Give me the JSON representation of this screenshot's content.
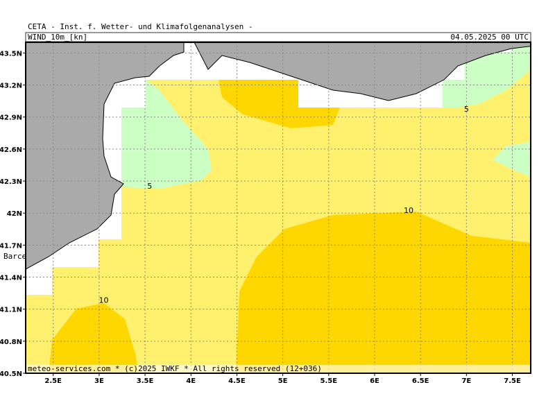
{
  "header": {
    "title": "CETA - Inst. f. Wetter- und Klimafolgenanalysen -",
    "field": "WIND_10m_[kn]",
    "valid_time": "04.05.2025 00 UTC"
  },
  "map": {
    "lon_range": [
      2.2,
      7.7
    ],
    "lat_range": [
      40.5,
      43.6
    ],
    "lon_ticks": [
      {
        "value": 2.5,
        "label": "2.5E"
      },
      {
        "value": 3,
        "label": "3E"
      },
      {
        "value": 3.5,
        "label": "3.5E"
      },
      {
        "value": 4,
        "label": "4E"
      },
      {
        "value": 4.5,
        "label": "4.5E"
      },
      {
        "value": 5,
        "label": "5E"
      },
      {
        "value": 5.5,
        "label": "5.5E"
      },
      {
        "value": 6,
        "label": "6E"
      },
      {
        "value": 6.5,
        "label": "6.5E"
      },
      {
        "value": 7,
        "label": "7E"
      },
      {
        "value": 7.5,
        "label": "7.5E"
      }
    ],
    "lat_ticks": [
      {
        "value": 40.5,
        "label": "40.5N"
      },
      {
        "value": 40.8,
        "label": "40.8N"
      },
      {
        "value": 41.1,
        "label": "41.1N"
      },
      {
        "value": 41.4,
        "label": "41.4N"
      },
      {
        "value": 41.7,
        "label": "41.7N"
      },
      {
        "value": 42,
        "label": "42N"
      },
      {
        "value": 42.3,
        "label": "42.3N"
      },
      {
        "value": 42.6,
        "label": "42.6N"
      },
      {
        "value": 42.9,
        "label": "42.9N"
      },
      {
        "value": 43.2,
        "label": "43.2N"
      },
      {
        "value": 43.5,
        "label": "43.5N"
      }
    ],
    "contour_labels": [
      {
        "text": "5",
        "lon": 3.55,
        "lat": 42.23
      },
      {
        "text": "5",
        "lon": 7.0,
        "lat": 42.95
      },
      {
        "text": "10",
        "lon": 6.37,
        "lat": 42.0
      },
      {
        "text": "10",
        "lon": 3.05,
        "lat": 41.16
      }
    ],
    "place_label": "Barce"
  },
  "footer": "meteo-services.com * (c)2025 IWKF * All rights reserved (12+036)"
}
